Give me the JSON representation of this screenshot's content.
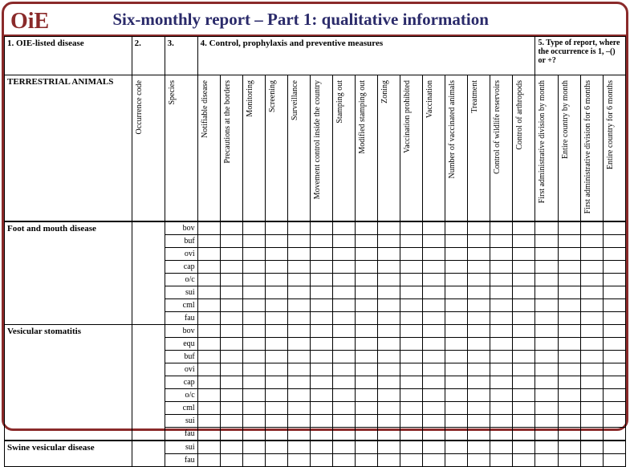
{
  "title": "Six-monthly report – Part 1: qualitative information",
  "logo_text": "OiE",
  "headers": {
    "h1": "1. OIE-listed disease",
    "h2": "2.",
    "h3": "3.",
    "h4": "4. Control, prophylaxis and preventive measures",
    "h5": "5. Type of report, where the occurrence is 1, –() or +?"
  },
  "section_label": "TERRESTRIAL ANIMALS",
  "vcols": {
    "occurrence": "Occurrence code",
    "species": "Species",
    "notifiable": "Notifiable disease",
    "precautions": "Precautions at the borders",
    "monitoring": "Monitoring",
    "screening": "Screening",
    "surveillance": "Surveillance",
    "movement": "Movement control inside the country",
    "stamping": "Stamping out",
    "modstamping": "Modified stamping out",
    "zoning": "Zoning",
    "vaccprohib": "Vaccination prohibited",
    "vaccination": "Vaccination",
    "numvacc": "Number of vaccinated animals",
    "treatment": "Treatment",
    "wildlife": "Control of wildlife reservoirs",
    "arthropods": "Control of arthropods",
    "adminmonth": "First administrative division by month",
    "countrymonth": "Entire country by month",
    "admin6": "First administrative division for 6 months",
    "country6": "Entire country for 6 months"
  },
  "diseases": {
    "fmd": {
      "name": "Foot and mouth disease",
      "species": [
        "bov",
        "buf",
        "ovi",
        "cap",
        "o/c",
        "sui",
        "cml",
        "fau"
      ]
    },
    "vs": {
      "name": "Vesicular stomatitis",
      "species": [
        "bov",
        "equ",
        "buf",
        "ovi",
        "cap",
        "o/c",
        "cml",
        "sui",
        "fau"
      ]
    },
    "svd": {
      "name": "Swine vesicular disease",
      "species": [
        "sui",
        "fau"
      ]
    }
  },
  "colors": {
    "frame": "#8a2a2a",
    "title": "#2a2a6a"
  }
}
